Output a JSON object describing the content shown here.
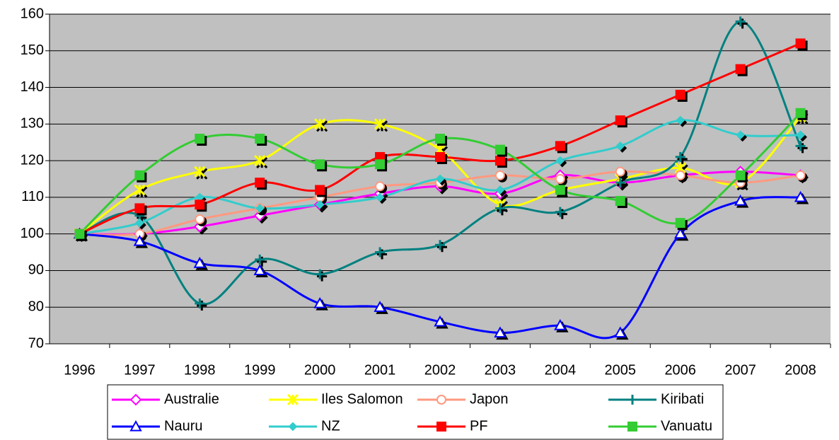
{
  "chart_data": {
    "type": "line",
    "categories": [
      "1996",
      "1997",
      "1998",
      "1999",
      "2000",
      "2001",
      "2002",
      "2003",
      "2004",
      "2005",
      "2006",
      "2007",
      "2008"
    ],
    "series": [
      {
        "name": "Australie",
        "color": "#ff00ff",
        "marker": "diamond",
        "values": [
          100,
          100,
          102,
          105,
          108,
          111,
          113,
          111,
          116,
          114,
          116,
          117,
          116
        ]
      },
      {
        "name": "Iles Salomon",
        "color": "#ffff00",
        "marker": "star",
        "values": [
          100,
          112,
          117,
          120,
          130,
          130,
          123,
          108,
          112,
          115,
          118,
          114,
          132
        ]
      },
      {
        "name": "Japon",
        "color": "#ff9980",
        "marker": "circle",
        "values": [
          100,
          100,
          104,
          107,
          110,
          113,
          114,
          116,
          115,
          117,
          116,
          114,
          116
        ]
      },
      {
        "name": "Kiribati",
        "color": "#008080",
        "marker": "plus",
        "values": [
          100,
          105,
          81,
          93,
          89,
          95,
          97,
          107,
          106,
          114,
          121,
          158,
          124
        ]
      },
      {
        "name": "Nauru",
        "color": "#0000ff",
        "marker": "triangle",
        "values": [
          100,
          98,
          92,
          90,
          81,
          80,
          76,
          73,
          75,
          73,
          100,
          109,
          110
        ]
      },
      {
        "name": "NZ",
        "color": "#33cccc",
        "marker": "smalldiamond",
        "values": [
          100,
          103,
          110,
          107,
          108,
          110,
          115,
          112,
          120,
          124,
          131,
          127,
          127
        ]
      },
      {
        "name": "PF",
        "color": "#ff0000",
        "marker": "square",
        "values": [
          100,
          107,
          108,
          114,
          112,
          121,
          121,
          120,
          124,
          131,
          138,
          145,
          152
        ]
      },
      {
        "name": "Vanuatu",
        "color": "#33cc33",
        "marker": "square",
        "values": [
          100,
          116,
          126,
          126,
          119,
          119,
          126,
          123,
          112,
          109,
          103,
          116,
          133
        ]
      }
    ],
    "ylim": [
      70,
      160
    ],
    "yticks": [
      70,
      80,
      90,
      100,
      110,
      120,
      130,
      140,
      150,
      160
    ],
    "grid": true,
    "smooth": true,
    "legend": "bottom"
  }
}
